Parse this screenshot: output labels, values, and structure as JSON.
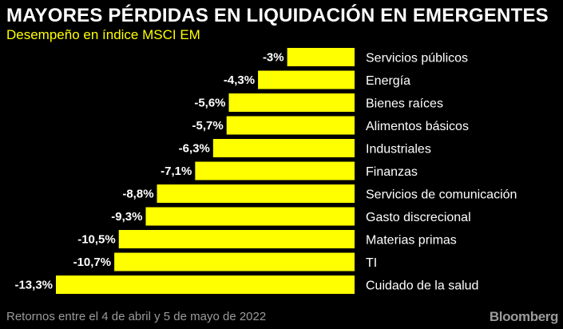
{
  "header": {
    "title": "MAYORES PÉRDIDAS EN LIQUIDACIÓN EN EMERGENTES",
    "subtitle": "Desempeño en índice MSCI EM"
  },
  "footer": {
    "note": "Retornos entre el 4 de abril y 5 de mayo de 2022",
    "brand": "Bloomberg"
  },
  "colors": {
    "background": "#000000",
    "bar": "#ffff00",
    "text": "#ffffff",
    "subtitle": "#ffff00",
    "footer": "#9a9a9a"
  },
  "chart_data": {
    "type": "bar",
    "orientation": "horizontal",
    "title": "MAYORES PÉRDIDAS EN LIQUIDACIÓN EN EMERGENTES",
    "subtitle": "Desempeño en índice MSCI EM",
    "categories": [
      "Servicios públicos",
      "Energía",
      "Bienes raíces",
      "Alimentos básicos",
      "Industriales",
      "Finanzas",
      "Servicios de comunicación",
      "Gasto discrecional",
      "Materias primas",
      "TI",
      "Cuidado de la salud"
    ],
    "values": [
      -3,
      -4.3,
      -5.6,
      -5.7,
      -6.3,
      -7.1,
      -8.8,
      -9.3,
      -10.5,
      -10.7,
      -13.3
    ],
    "value_labels": [
      "-3%",
      "-4,3%",
      "-5,6%",
      "-5,7%",
      "-6,3%",
      "-7,1%",
      "-8,8%",
      "-9,3%",
      "-10,5%",
      "-10,7%",
      "-13,3%"
    ],
    "xlim": [
      -13.3,
      0
    ],
    "grid": false,
    "legend": "none"
  }
}
